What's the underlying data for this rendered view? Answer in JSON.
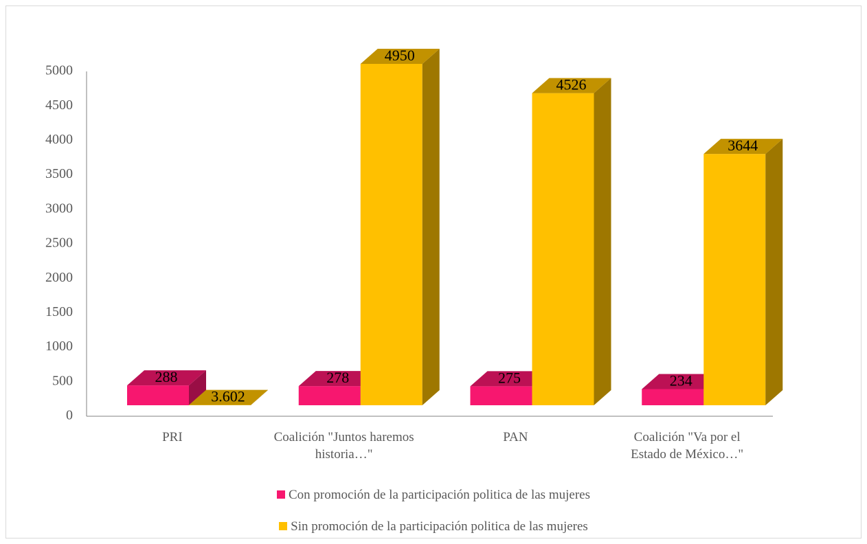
{
  "chart_data": {
    "type": "bar3d",
    "categories": [
      "PRI",
      "Coalición \"Juntos haremos historia…\"",
      "PAN",
      "Coalición \"Va por el Estado de México…\""
    ],
    "series": [
      {
        "name": "Con promoción de la participación politica de las mujeres",
        "color": "#f7176f",
        "values": [
          288,
          278,
          275,
          234
        ]
      },
      {
        "name": "Sin promoción de la participación politica de las mujeres",
        "color": "#ffc000",
        "values": [
          3.602,
          4950,
          4526,
          3644
        ]
      }
    ],
    "ylim": [
      0,
      5000
    ],
    "yticks": [
      0,
      500,
      1000,
      1500,
      2000,
      2500,
      3000,
      3500,
      4000,
      4500,
      5000
    ],
    "grid": false,
    "legend": "bottom"
  }
}
